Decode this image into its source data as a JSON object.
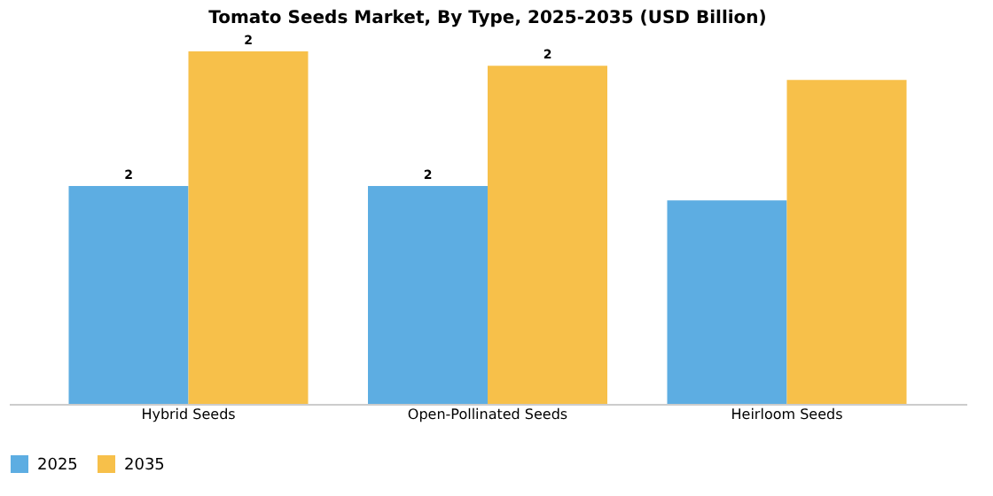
{
  "chart_data": {
    "type": "bar",
    "title": "Tomato Seeds Market, By Type, 2025-2035 (USD Billion)",
    "categories": [
      "Hybrid Seeds",
      "Open-Pollinated Seeds",
      "Heirloom Seeds"
    ],
    "legend": "bottom",
    "series": [
      {
        "name": "2025",
        "color": "#5dade2",
        "values": [
          1.52,
          1.52,
          1.42
        ],
        "value_labels": [
          "2",
          "2",
          null
        ]
      },
      {
        "name": "2035",
        "color": "#f7c04a",
        "values": [
          2.46,
          2.36,
          2.26
        ],
        "value_labels": [
          "2",
          "2",
          null
        ]
      }
    ]
  }
}
